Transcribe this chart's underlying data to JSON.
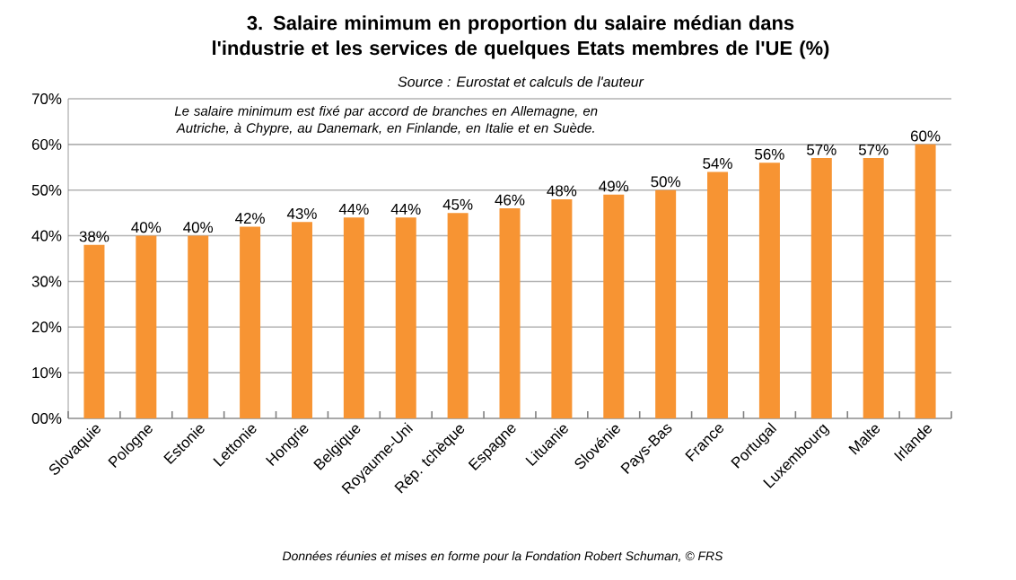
{
  "chart_data": {
    "type": "bar",
    "title": "3.  Salaire minimum en proportion du salaire médian dans l'industrie et les services de quelques Etats membres de l'UE (%)",
    "subtitle": "Source : Eurostat et calculs de l'auteur",
    "categories": [
      "Slovaquie",
      "Pologne",
      "Estonie",
      "Lettonie",
      "Hongrie",
      "Belgique",
      "Royaume-Uni",
      "Rép. tchèque",
      "Espagne",
      "Lituanie",
      "Slovénie",
      "Pays-Bas",
      "France",
      "Portugal",
      "Luxembourg",
      "Malte",
      "Irlande"
    ],
    "values": [
      38,
      40,
      40,
      42,
      43,
      44,
      44,
      45,
      46,
      48,
      49,
      50,
      54,
      56,
      57,
      57,
      60
    ],
    "value_labels": [
      "38%",
      "40%",
      "40%",
      "42%",
      "43%",
      "44%",
      "44%",
      "45%",
      "46%",
      "48%",
      "49%",
      "50%",
      "54%",
      "56%",
      "57%",
      "57%",
      "60%"
    ],
    "color": "#f79433",
    "ylim": [
      0,
      70
    ],
    "yticks": [
      {
        "value": 0,
        "label": "00%"
      },
      {
        "value": 10,
        "label": "10%"
      },
      {
        "value": 20,
        "label": "20%"
      },
      {
        "value": 30,
        "label": "30%"
      },
      {
        "value": 40,
        "label": "40%"
      },
      {
        "value": 50,
        "label": "50%"
      },
      {
        "value": 60,
        "label": "60%"
      },
      {
        "value": 70,
        "label": "70%"
      }
    ],
    "grid": "y",
    "annotations": [
      "Le salaire minimum est fixé par accord de branches en Allemagne, en Autriche, à Chypre, au Danemark, en Finlande, en Italie et en Suède.",
      "Données réunies et mises en forme pour la Fondation Robert Schuman, © FRS"
    ]
  }
}
